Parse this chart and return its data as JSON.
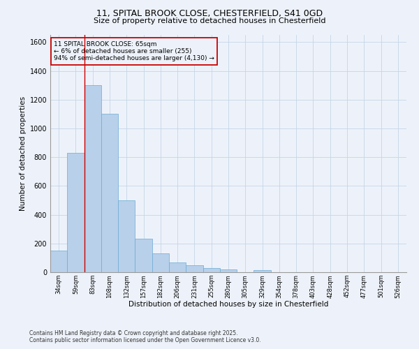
{
  "title_line1": "11, SPITAL BROOK CLOSE, CHESTERFIELD, S41 0GD",
  "title_line2": "Size of property relative to detached houses in Chesterfield",
  "xlabel": "Distribution of detached houses by size in Chesterfield",
  "ylabel": "Number of detached properties",
  "footer": "Contains HM Land Registry data © Crown copyright and database right 2025.\nContains public sector information licensed under the Open Government Licence v3.0.",
  "bins": [
    "34sqm",
    "59sqm",
    "83sqm",
    "108sqm",
    "132sqm",
    "157sqm",
    "182sqm",
    "206sqm",
    "231sqm",
    "255sqm",
    "280sqm",
    "305sqm",
    "329sqm",
    "354sqm",
    "378sqm",
    "403sqm",
    "428sqm",
    "452sqm",
    "477sqm",
    "501sqm",
    "526sqm"
  ],
  "values": [
    150,
    830,
    1300,
    1100,
    500,
    235,
    130,
    70,
    50,
    30,
    20,
    0,
    15,
    0,
    0,
    0,
    0,
    0,
    0,
    0,
    0
  ],
  "bar_color": "#b8d0ea",
  "bar_edge_color": "#6aaad4",
  "grid_color": "#c5d5e8",
  "bg_color": "#edf2fa",
  "vline_x": 1.5,
  "vline_color": "#cc0000",
  "annotation_text": "11 SPITAL BROOK CLOSE: 65sqm\n← 6% of detached houses are smaller (255)\n94% of semi-detached houses are larger (4,130) →",
  "annotation_box_color": "#cc0000",
  "ylim": [
    0,
    1650
  ],
  "yticks": [
    0,
    200,
    400,
    600,
    800,
    1000,
    1200,
    1400,
    1600
  ]
}
